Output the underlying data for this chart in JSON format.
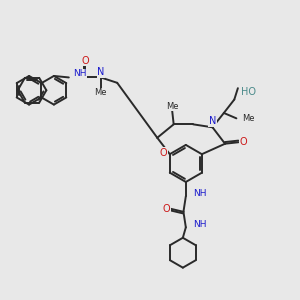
{
  "bg_color": "#e8e8e8",
  "bond_color": "#2a2a2a",
  "N_color": "#1a1acc",
  "O_color": "#cc1a1a",
  "HO_color": "#4a8a8a",
  "line_width": 1.4,
  "figsize": [
    3.0,
    3.0
  ],
  "dpi": 100,
  "xlim": [
    0,
    10
  ],
  "ylim": [
    0,
    10
  ]
}
